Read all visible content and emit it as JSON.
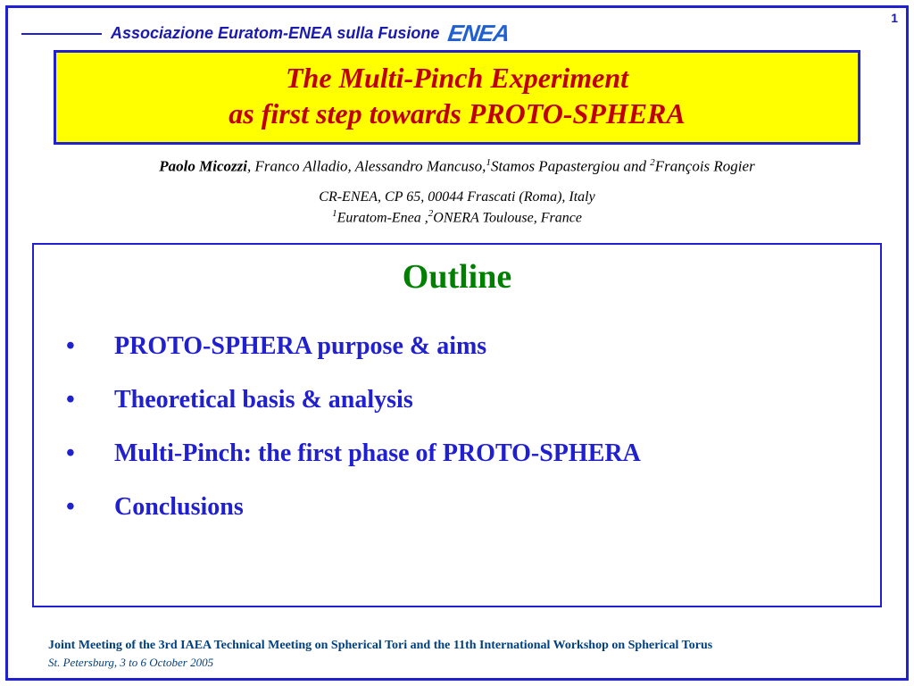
{
  "page_number": "1",
  "header": {
    "association_text": "Associazione Euratom-ENEA sulla Fusione",
    "logo_text": "ENEA",
    "line_color": "#2020d0",
    "text_color": "#1a1ab0"
  },
  "title": {
    "line1": "The Multi-Pinch Experiment",
    "line2": "as first step towards PROTO-SPHERA",
    "bg_color": "#ffff00",
    "border_color": "#2020d0",
    "text_color": "#c00000",
    "font_size_pt": 32
  },
  "authors": {
    "lead": "Paolo Micozzi",
    "rest_before_sup1": ", Franco Alladio, Alessandro Mancuso,",
    "sup1": "1",
    "name_after_sup1": "Stamos Papastergiou and ",
    "sup2": "2",
    "name_after_sup2": "François Rogier"
  },
  "affiliations": {
    "line1": "CR-ENEA, CP 65, 00044 Frascati (Roma), Italy",
    "sup1": "1",
    "aff1_text": "Euratom-Enea ,",
    "sup2": "2",
    "aff2_text": "ONERA  Toulouse, France"
  },
  "outline": {
    "heading": "Outline",
    "heading_color": "#008000",
    "item_color": "#2020d0",
    "items": [
      "PROTO-SPHERA purpose & aims",
      "Theoretical basis & analysis",
      "Multi-Pinch: the first phase of PROTO-SPHERA",
      "Conclusions"
    ]
  },
  "footer": {
    "meeting": "Joint Meeting of the 3rd IAEA Technical Meeting on Spherical Tori and the 11th International Workshop on Spherical Torus",
    "location": "St. Petersburg, 3 to 6 October 2005",
    "text_color": "#004080"
  },
  "colors": {
    "slide_border": "#2020d0",
    "background": "#ffffff"
  }
}
